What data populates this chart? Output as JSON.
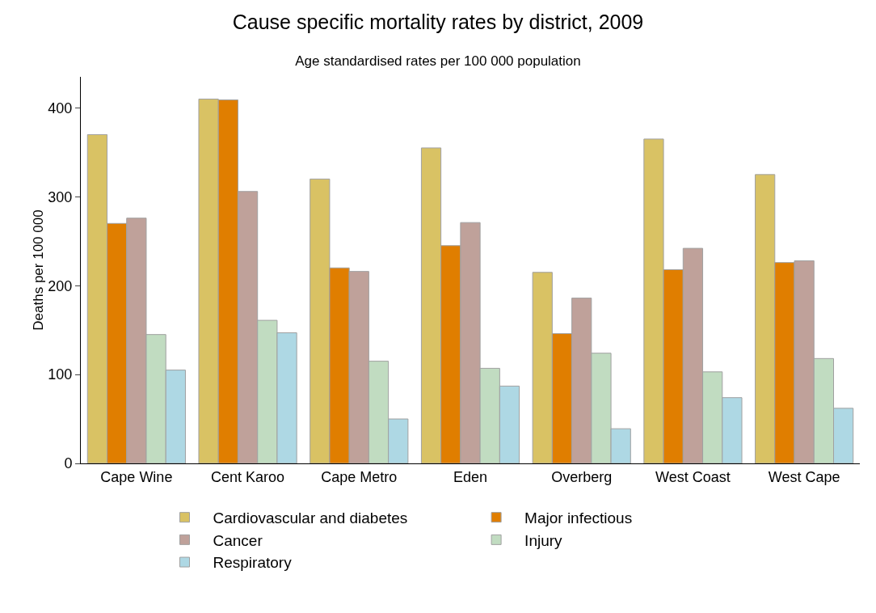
{
  "chart_data": {
    "type": "bar",
    "title": "Cause specific mortality rates by district, 2009",
    "subtitle": "Age standardised rates per 100 000 population",
    "ylabel": "Deaths per 100 000",
    "categories": [
      "Cape Wine",
      "Cent Karoo",
      "Cape Metro",
      "Eden",
      "Overberg",
      "West Coast",
      "West Cape"
    ],
    "series": [
      {
        "name": "Cardiovascular and diabetes",
        "color": "#d9c264",
        "values": [
          370,
          410,
          320,
          355,
          215,
          365,
          325
        ]
      },
      {
        "name": "Major infectious",
        "color": "#e07e00",
        "values": [
          270,
          409,
          220,
          245,
          146,
          218,
          226
        ]
      },
      {
        "name": "Cancer",
        "color": "#bfa19a",
        "values": [
          276,
          306,
          216,
          271,
          186,
          242,
          228
        ]
      },
      {
        "name": "Injury",
        "color": "#c1dcc1",
        "values": [
          145,
          161,
          115,
          107,
          124,
          103,
          118
        ]
      },
      {
        "name": "Respiratory",
        "color": "#aed8e4",
        "values": [
          105,
          147,
          50,
          87,
          39,
          74,
          62
        ]
      }
    ],
    "ylim": [
      0,
      435
    ],
    "yticks": [
      0,
      100,
      200,
      300,
      400
    ],
    "grid": false,
    "legend": "bottom"
  }
}
